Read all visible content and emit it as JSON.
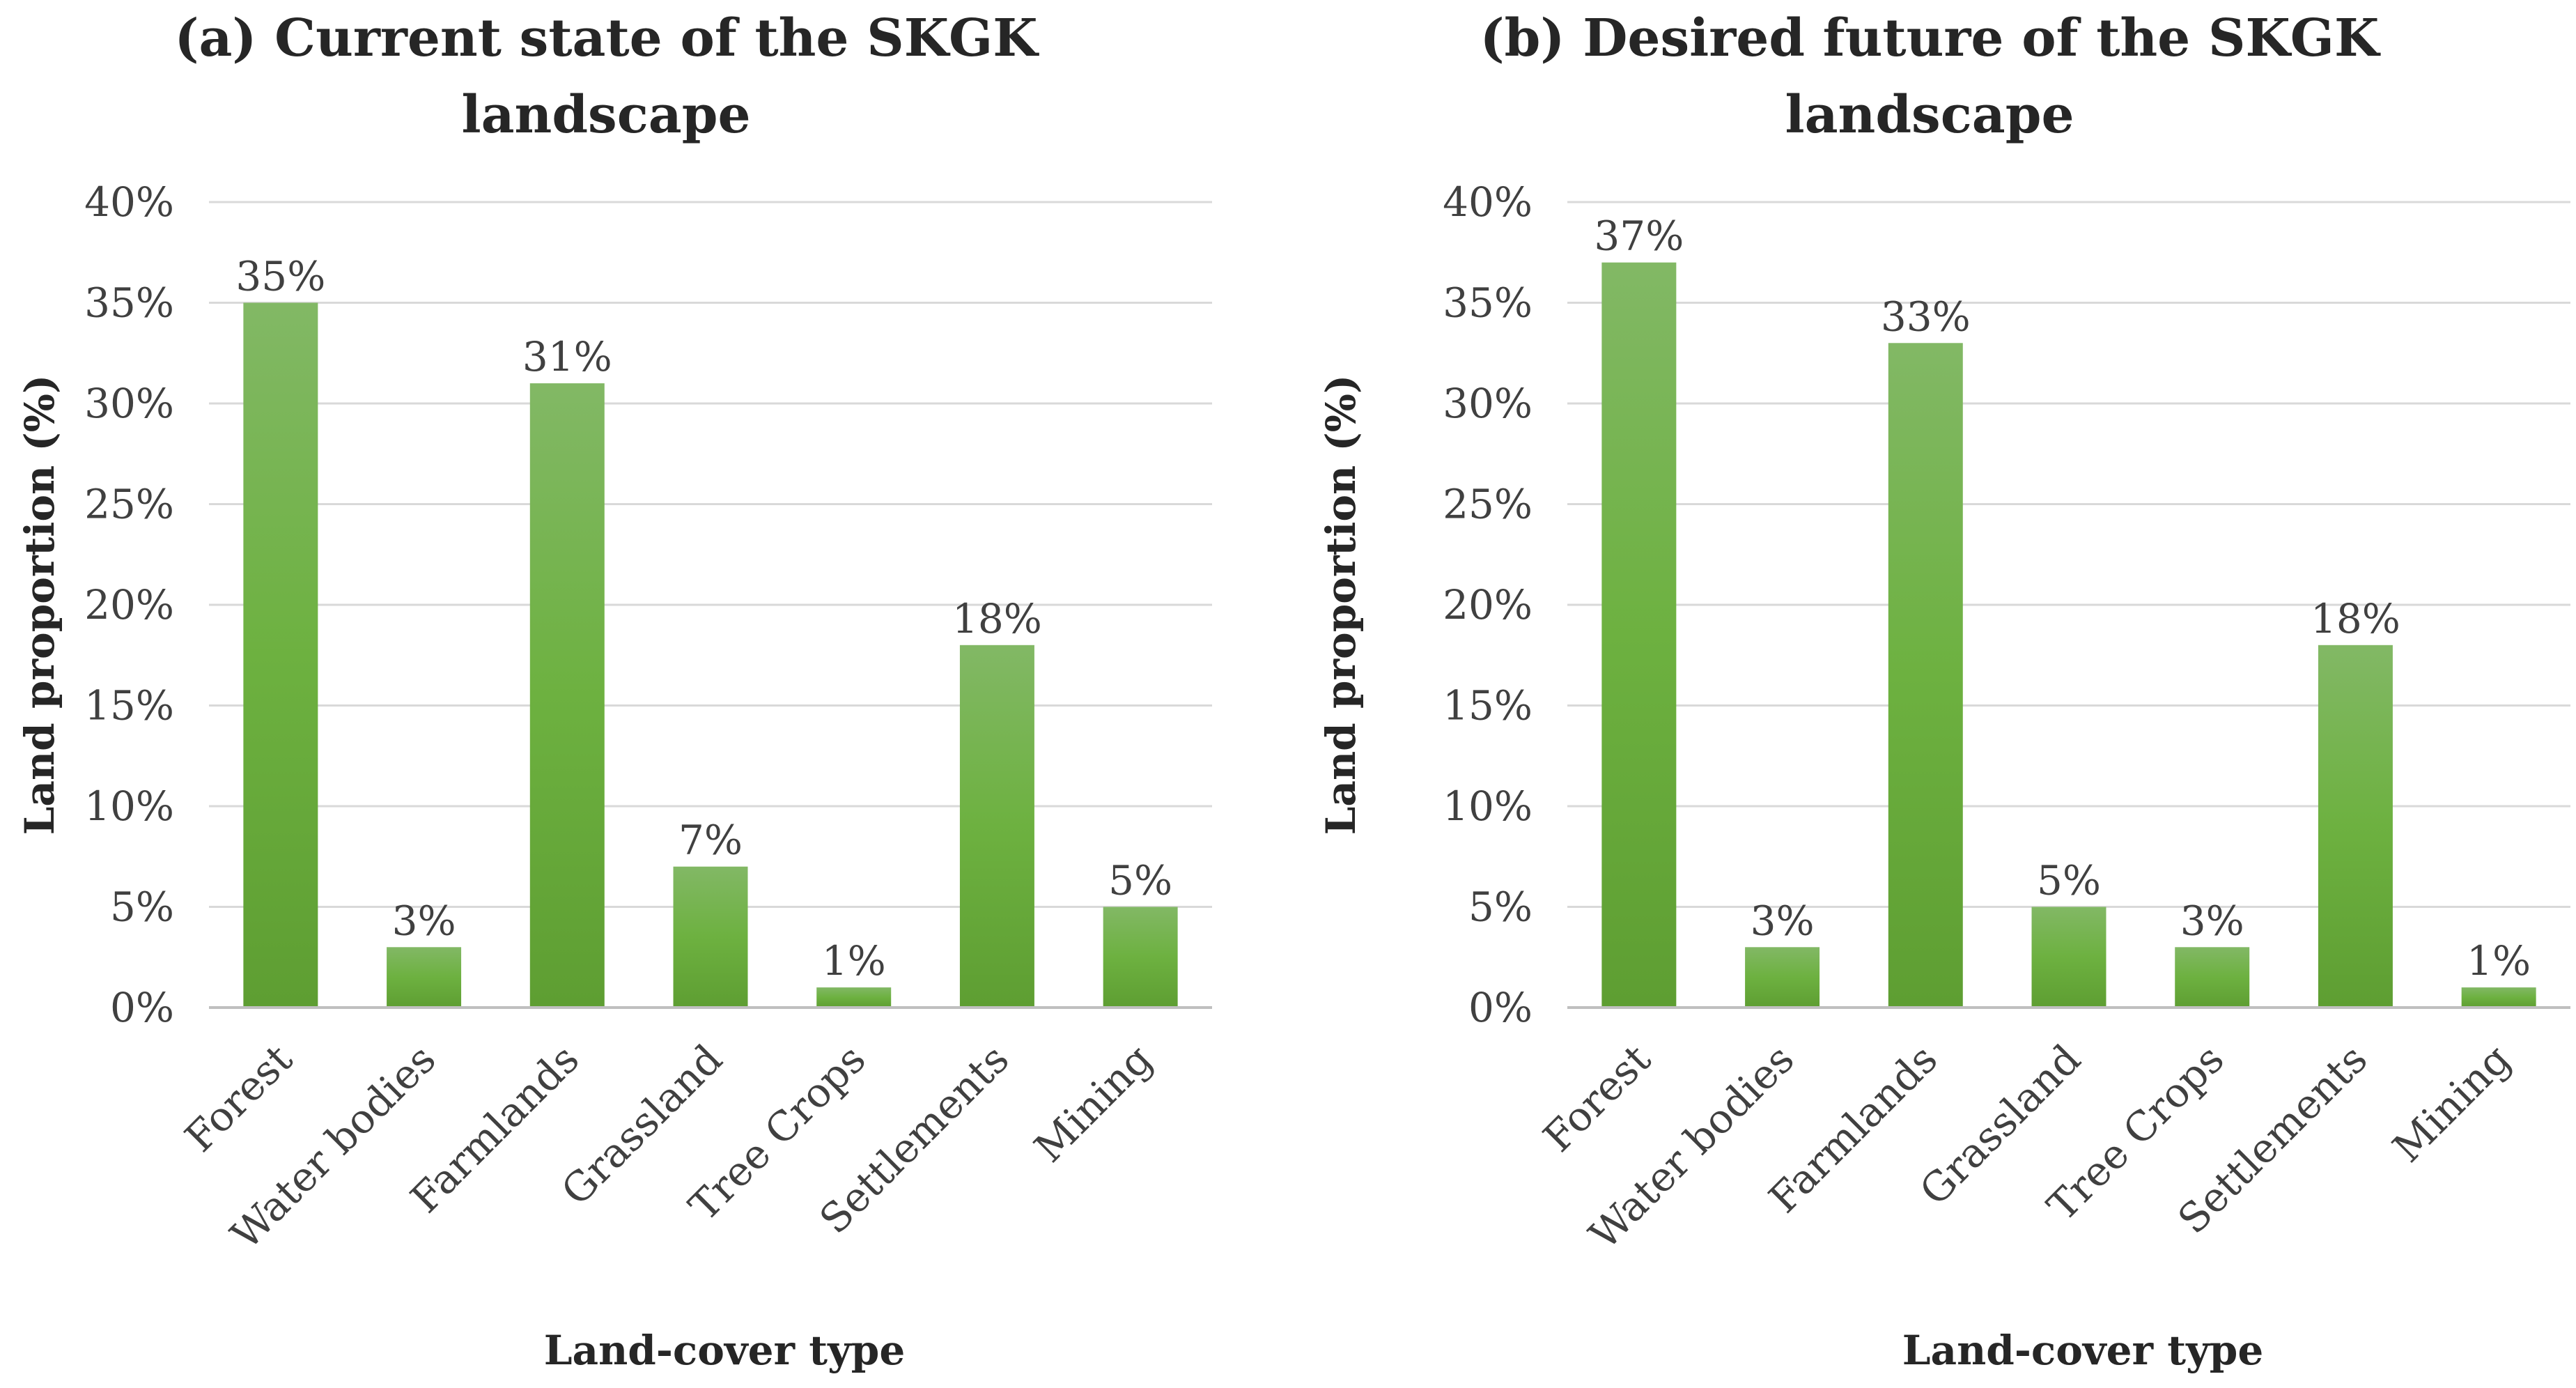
{
  "chart_data": [
    {
      "type": "bar",
      "title": "(a) Current state of the SKGK landscape",
      "title_lines": [
        "(a) Current state of the SKGK",
        "landscape"
      ],
      "xlabel": "Land-cover type",
      "ylabel": "Land proportion (%)",
      "categories": [
        "Forest",
        "Water bodies",
        "Farmlands",
        "Grassland",
        "Tree Crops",
        "Settlements",
        "Mining"
      ],
      "values": [
        35,
        3,
        31,
        7,
        1,
        18,
        5
      ],
      "data_labels": [
        "35%",
        "3%",
        "31%",
        "7%",
        "1%",
        "18%",
        "5%"
      ],
      "ylim": [
        0,
        40
      ],
      "yticks": [
        0,
        5,
        10,
        15,
        20,
        25,
        30,
        35,
        40
      ],
      "ytick_labels": [
        "0%",
        "5%",
        "10%",
        "15%",
        "20%",
        "25%",
        "30%",
        "35%",
        "40%"
      ],
      "grid": true,
      "bar_color": "#6aaf3d"
    },
    {
      "type": "bar",
      "title": "(b) Desired future of the SKGK landscape",
      "title_lines": [
        "(b) Desired future of the SKGK",
        "landscape"
      ],
      "xlabel": "Land-cover type",
      "ylabel": "Land proportion (%)",
      "categories": [
        "Forest",
        "Water bodies",
        "Farmlands",
        "Grassland",
        "Tree Crops",
        "Settlements",
        "Mining"
      ],
      "values": [
        37,
        3,
        33,
        5,
        3,
        18,
        1
      ],
      "data_labels": [
        "37%",
        "3%",
        "33%",
        "5%",
        "3%",
        "18%",
        "1%"
      ],
      "ylim": [
        0,
        40
      ],
      "yticks": [
        0,
        5,
        10,
        15,
        20,
        25,
        30,
        35,
        40
      ],
      "ytick_labels": [
        "0%",
        "5%",
        "10%",
        "15%",
        "20%",
        "25%",
        "30%",
        "35%",
        "40%"
      ],
      "grid": true,
      "bar_color": "#6aaf3d"
    }
  ]
}
